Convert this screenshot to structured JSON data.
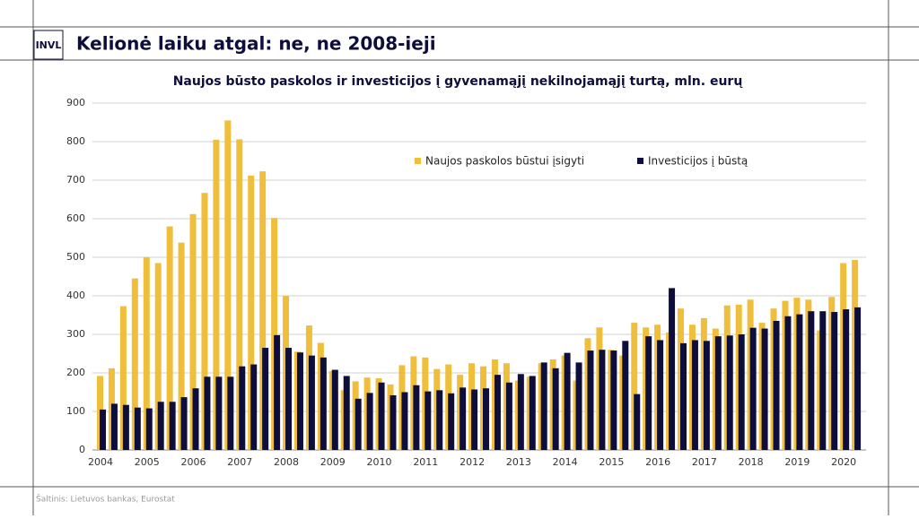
{
  "header": {
    "logo": "INVL",
    "title": "Kelionė laiku atgal: ne, ne 2008-ieji"
  },
  "source": "Šaltinis: Lietuvos bankas, Eurostat",
  "chart_data": {
    "type": "bar",
    "title": "Naujos būsto paskolos ir investicijos į gyvenamąjį nekilnojamąjį turtą, mln. eurų",
    "categories": [
      "2004",
      null,
      null,
      null,
      "2005",
      null,
      null,
      null,
      "2006",
      null,
      null,
      null,
      "2007",
      null,
      null,
      null,
      "2008",
      null,
      null,
      null,
      "2009",
      null,
      null,
      null,
      "2010",
      null,
      null,
      null,
      "2011",
      null,
      null,
      null,
      "2012",
      null,
      null,
      null,
      "2013",
      null,
      null,
      null,
      "2014",
      null,
      null,
      null,
      "2015",
      null,
      null,
      null,
      "2016",
      null,
      null,
      null,
      "2017",
      null,
      null,
      null,
      "2018",
      null,
      null,
      null,
      "2019",
      null,
      null,
      null,
      "2020",
      null
    ],
    "series": [
      {
        "name": "Naujos paskolos būstui įsigyti",
        "color": "#efbf3c",
        "values": [
          192,
          212,
          373,
          445,
          500,
          485,
          580,
          538,
          612,
          667,
          805,
          855,
          806,
          712,
          723,
          602,
          400,
          255,
          323,
          278,
          205,
          155,
          178,
          188,
          186,
          170,
          220,
          243,
          240,
          210,
          222,
          195,
          225,
          217,
          235,
          225,
          180,
          190,
          225,
          235,
          245,
          180,
          290,
          318,
          260,
          245,
          330,
          318,
          325,
          305,
          367,
          325,
          342,
          315,
          375,
          377,
          390,
          330,
          367,
          387,
          395,
          390,
          310,
          397,
          485,
          493
        ]
      },
      {
        "name": "Investicijos į būstą",
        "color": "#0e0e3c",
        "values": [
          105,
          120,
          117,
          110,
          108,
          125,
          125,
          137,
          160,
          190,
          190,
          190,
          217,
          222,
          265,
          298,
          265,
          253,
          245,
          240,
          208,
          192,
          133,
          148,
          175,
          142,
          150,
          168,
          152,
          155,
          147,
          162,
          157,
          160,
          195,
          175,
          197,
          192,
          227,
          212,
          252,
          227,
          258,
          260,
          258,
          283,
          145,
          295,
          285,
          420,
          277,
          285,
          283,
          295,
          297,
          300,
          317,
          315,
          335,
          347,
          352,
          360,
          360,
          358,
          365,
          370
        ]
      }
    ],
    "ylim": [
      0,
      900
    ],
    "yticks": [
      0,
      100,
      200,
      300,
      400,
      500,
      600,
      700,
      800,
      900
    ],
    "grid": true
  }
}
